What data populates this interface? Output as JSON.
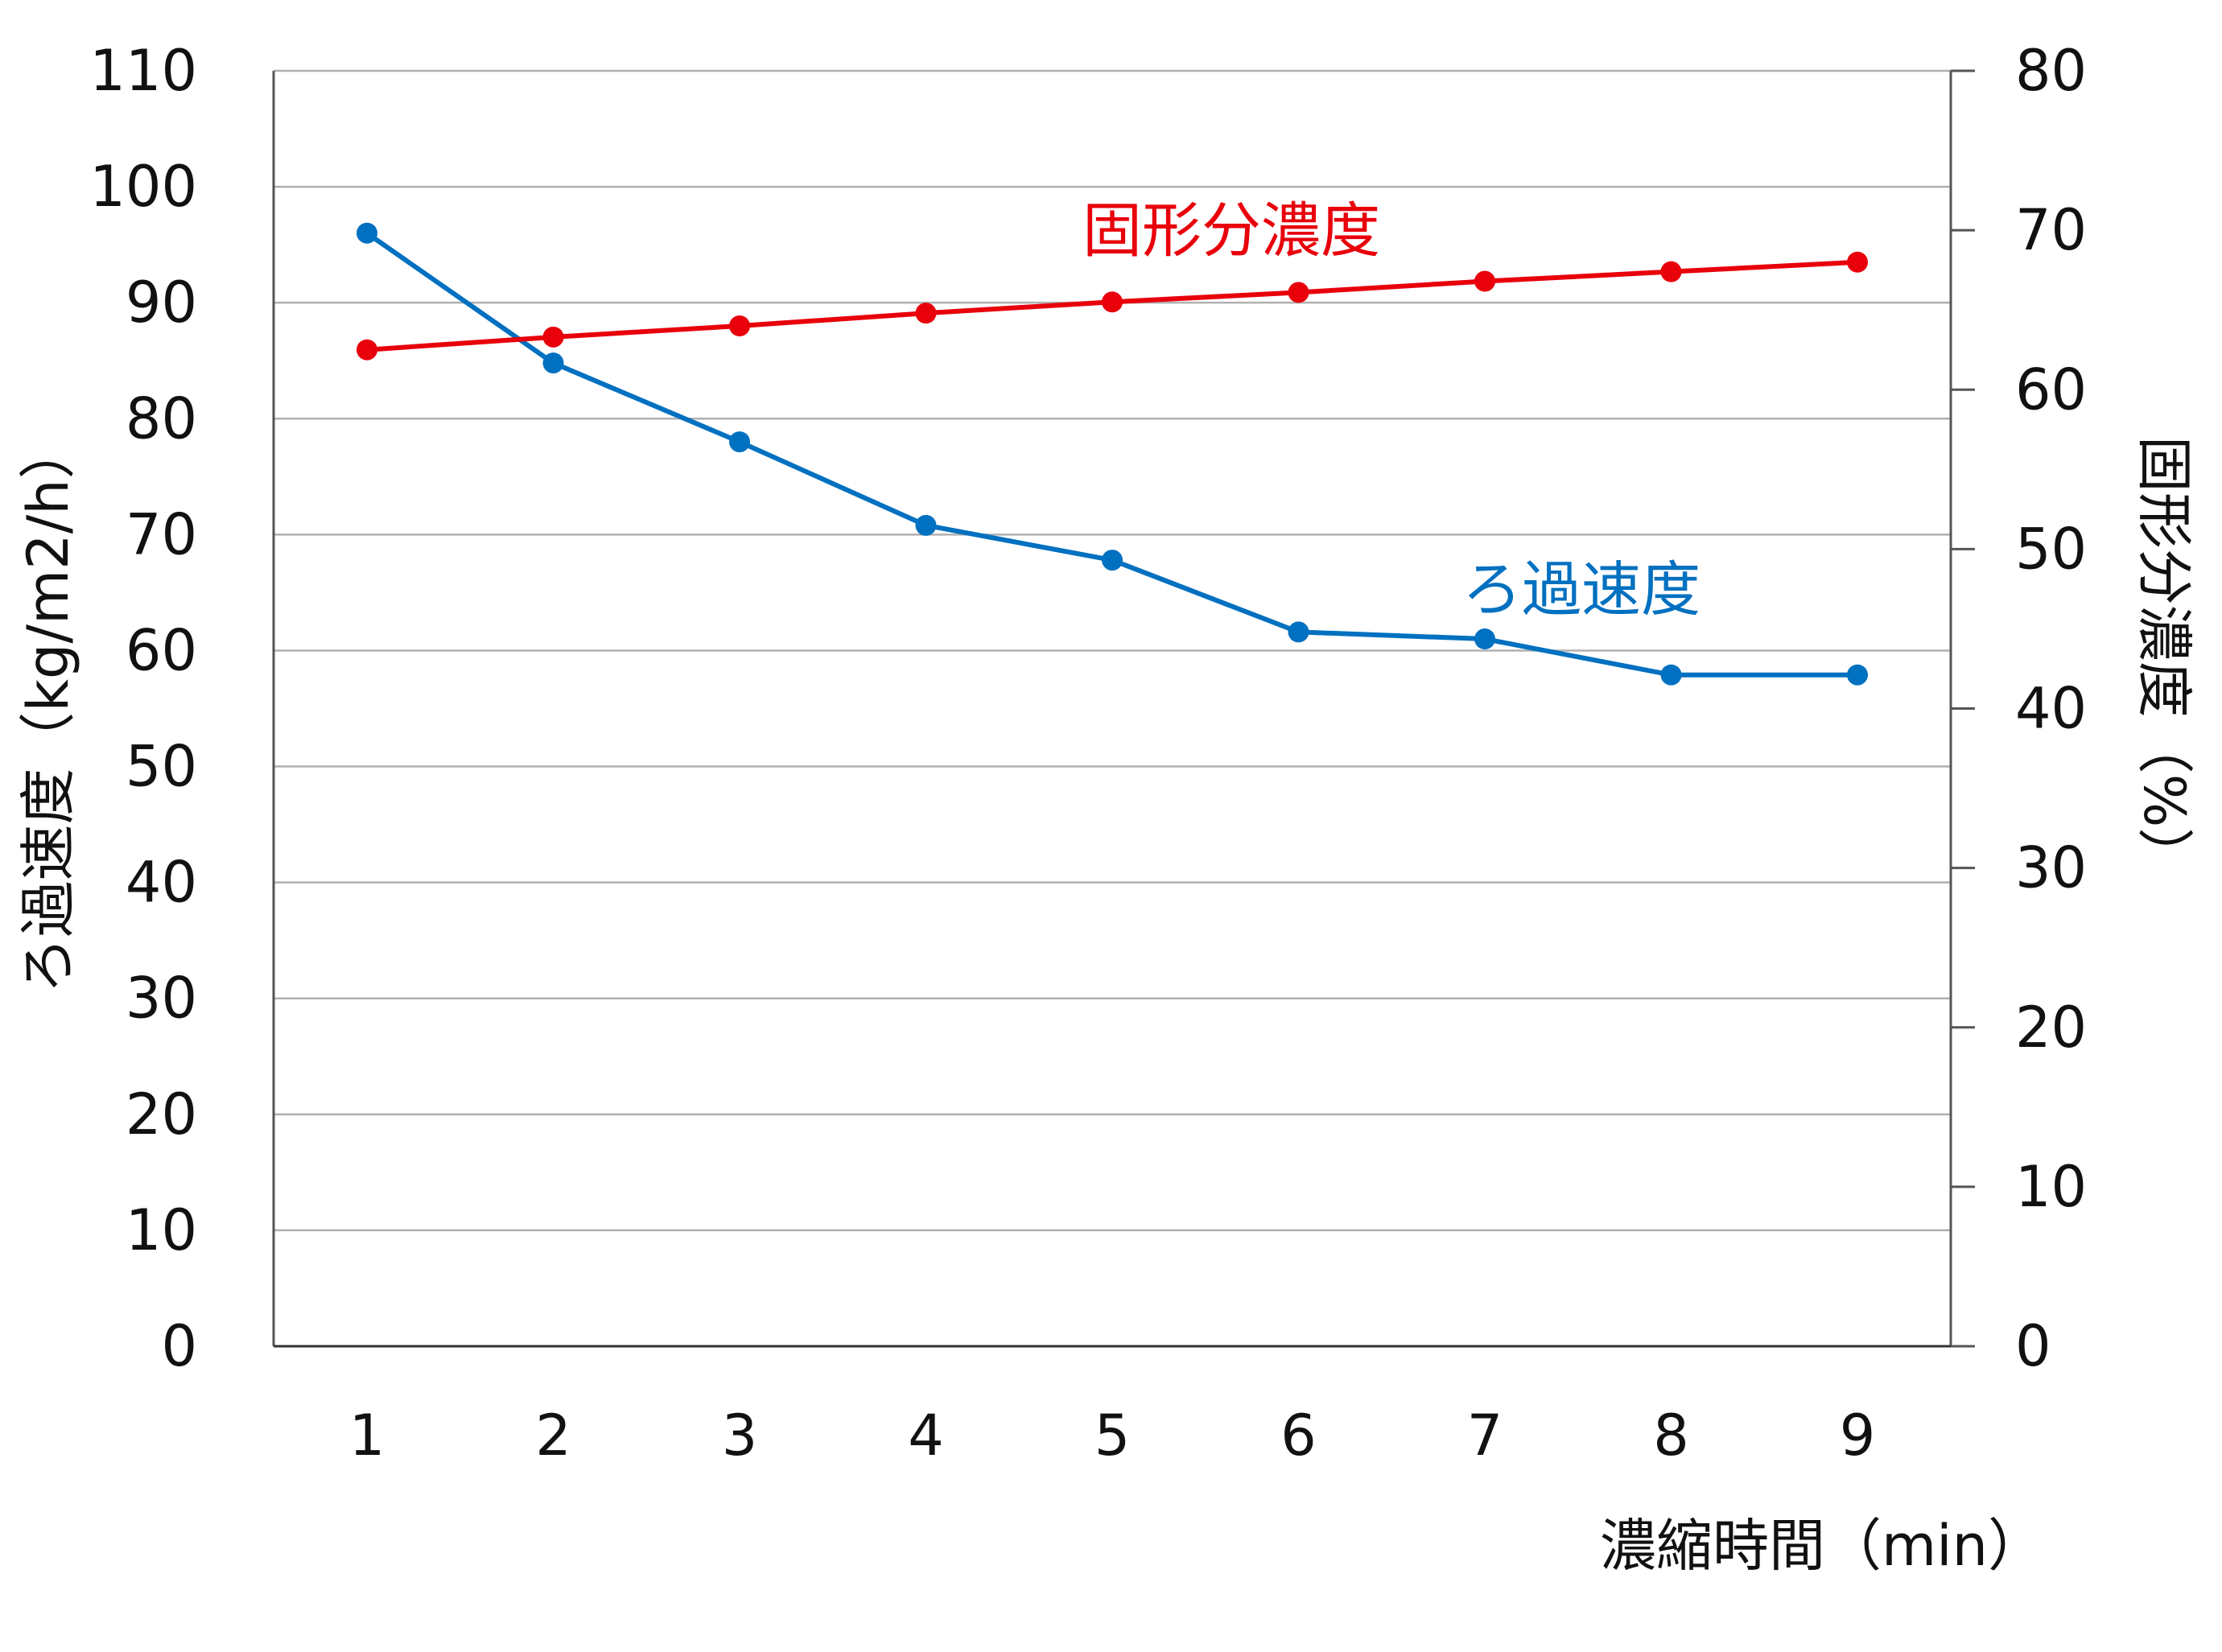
{
  "chart_data": {
    "type": "line",
    "x": [
      1,
      2,
      3,
      4,
      5,
      6,
      7,
      8,
      9
    ],
    "xlabel": "濃縮時間（min）",
    "ylabel_left": "ろ過速度（kg/m2/h）",
    "ylabel_right": "固形分濃度（%）",
    "ylim_left": [
      0,
      110
    ],
    "ylim_right": [
      0,
      80
    ],
    "yticks_left": [
      0,
      10,
      20,
      30,
      40,
      50,
      60,
      70,
      80,
      90,
      100,
      110
    ],
    "yticks_right": [
      0,
      10,
      20,
      30,
      40,
      50,
      60,
      70,
      80
    ],
    "grid": true,
    "series": [
      {
        "name": "ろ過速度",
        "axis": "left",
        "color": "#0070C0",
        "values": [
          96,
          84.8,
          78,
          70.8,
          67.8,
          61.6,
          61,
          57.9,
          57.9
        ]
      },
      {
        "name": "固形分濃度",
        "axis": "right",
        "color": "#E8000B",
        "values": [
          62.5,
          63.3,
          64,
          64.8,
          65.5,
          66.1,
          66.8,
          67.4,
          68
        ]
      }
    ]
  }
}
